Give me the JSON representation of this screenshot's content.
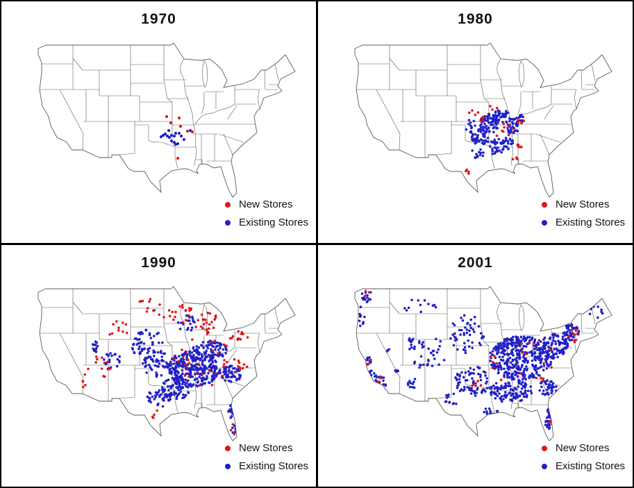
{
  "figure": {
    "description": "Four-panel small-multiple figure of the continental United States showing store locations over time",
    "legend": {
      "new_label": "New Stores",
      "existing_label": "Existing Stores"
    },
    "colors": {
      "new_stores": "#e01616",
      "existing_stores": "#2020c8",
      "map_line": "#5a5a5a",
      "panel_background": "#ffffff",
      "frame": "#000000",
      "title_text": "#111111"
    },
    "panels": [
      {
        "year": "1970"
      },
      {
        "year": "1980"
      },
      {
        "year": "1990"
      },
      {
        "year": "2001"
      }
    ]
  },
  "chart_data": [
    {
      "type": "scatter",
      "title": "1970",
      "map": "US lower-48 state outline map",
      "coordinate_space": "map-local px: x=(126.5-lon)*6.4, y=(49.5-lat)*9.2",
      "region_note": "Small cluster centered on northwest Arkansas / southern Missouri / eastern Oklahoma",
      "marker_size": 2.1,
      "series": [
        {
          "name": "New Stores",
          "color_key": "new_stores",
          "approx_count": 7,
          "points": [
            [
              196,
              108
            ],
            [
              202,
              117
            ],
            [
              214,
              110
            ],
            [
              216,
              122
            ],
            [
              226,
              129
            ],
            [
              233,
              130
            ],
            [
              212,
              168
            ]
          ]
        },
        {
          "name": "Existing Stores",
          "color_key": "existing_stores",
          "approx_count": 17,
          "points": [
            [
              188,
              137
            ],
            [
              191,
              135
            ],
            [
              194,
              133
            ],
            [
              199,
              128
            ],
            [
              197,
              136
            ],
            [
              200,
              138
            ],
            [
              203,
              135
            ],
            [
              207,
              136
            ],
            [
              209,
              132
            ],
            [
              214,
              132
            ],
            [
              217,
              136
            ],
            [
              203,
              143
            ],
            [
              207,
              145
            ],
            [
              209,
              148
            ],
            [
              212,
              147
            ],
            [
              221,
              141
            ],
            [
              230,
              128
            ]
          ]
        }
      ]
    },
    {
      "type": "scatter",
      "title": "1980",
      "map": "US lower-48 state outline map",
      "coordinate_space": "map-local px: x=(126.5-lon)*6.4, y=(49.5-lat)*9.2",
      "region_note": "Dense cluster over Arkansas, Missouri, Oklahoma, Kansas edge, north Texas, Louisiana, Mississippi, Tennessee; new stores on fringe (Kansas, Alabama, Texas gulf coast)",
      "marker_size": 1.8,
      "series": [
        {
          "name": "Existing Stores",
          "color_key": "existing_stores",
          "approx_count": 269,
          "clusters": [
            {
              "cx": 205,
              "cy": 118,
              "rx": 15,
              "ry": 14,
              "n": 70
            },
            {
              "cx": 192,
              "cy": 138,
              "rx": 13,
              "ry": 12,
              "n": 40
            },
            {
              "cx": 222,
              "cy": 108,
              "rx": 13,
              "ry": 10,
              "n": 40
            },
            {
              "cx": 238,
              "cy": 122,
              "rx": 10,
              "ry": 12,
              "n": 35
            },
            {
              "cx": 215,
              "cy": 152,
              "rx": 11,
              "ry": 12,
              "n": 30
            },
            {
              "cx": 232,
              "cy": 146,
              "rx": 8,
              "ry": 9,
              "n": 18
            },
            {
              "cx": 188,
              "cy": 160,
              "rx": 9,
              "ry": 8,
              "n": 12
            },
            {
              "cx": 248,
              "cy": 112,
              "rx": 7,
              "ry": 7,
              "n": 12
            },
            {
              "cx": 178,
              "cy": 122,
              "rx": 8,
              "ry": 10,
              "n": 12
            }
          ]
        },
        {
          "name": "New Stores",
          "color_key": "new_stores",
          "approx_count": 40,
          "clusters": [
            {
              "cx": 182,
              "cy": 103,
              "rx": 8,
              "ry": 5,
              "n": 4
            },
            {
              "cx": 195,
              "cy": 112,
              "rx": 6,
              "ry": 5,
              "n": 4
            },
            {
              "cx": 248,
              "cy": 150,
              "rx": 4,
              "ry": 3,
              "n": 6
            },
            {
              "cx": 204,
              "cy": 190,
              "rx": 5,
              "ry": 3,
              "n": 4
            },
            {
              "cx": 172,
              "cy": 188,
              "rx": 5,
              "ry": 4,
              "n": 4
            },
            {
              "cx": 222,
              "cy": 125,
              "rx": 18,
              "ry": 12,
              "n": 8
            },
            {
              "cx": 250,
              "cy": 115,
              "rx": 5,
              "ry": 4,
              "n": 4
            },
            {
              "cx": 240,
              "cy": 168,
              "rx": 6,
              "ry": 3,
              "n": 3
            },
            {
              "cx": 210,
              "cy": 95,
              "rx": 8,
              "ry": 4,
              "n": 3
            }
          ]
        }
      ]
    },
    {
      "type": "scatter",
      "title": "1990",
      "map": "US lower-48 state outline map",
      "coordinate_space": "map-local px: x=(126.5-lon)*6.4, y=(49.5-lat)*9.2",
      "region_note": "Existing stores blanket the South and lower Midwest plus Florida; new stores form expansion frontier across Dakotas/Minnesota/Wisconsin/Michigan, Pennsylvania/New York, and mountain west (Wyoming, Utah, Colorado, New Mexico, Arizona, California edge)",
      "marker_size": 1.8,
      "series": [
        {
          "name": "Existing Stores",
          "color_key": "existing_stores",
          "approx_count": 743,
          "clusters": [
            {
              "cx": 235,
              "cy": 120,
              "rx": 38,
              "ry": 26,
              "n": 300
            },
            {
              "cx": 210,
              "cy": 148,
              "rx": 22,
              "ry": 16,
              "n": 80
            },
            {
              "cx": 258,
              "cy": 95,
              "rx": 26,
              "ry": 15,
              "n": 80
            },
            {
              "cx": 288,
              "cy": 128,
              "rx": 16,
              "ry": 12,
              "n": 55
            },
            {
              "cx": 180,
              "cy": 112,
              "rx": 20,
              "ry": 20,
              "n": 55
            },
            {
              "cx": 185,
              "cy": 162,
              "rx": 18,
              "ry": 14,
              "n": 40
            },
            {
              "cx": 292,
              "cy": 182,
              "rx": 7,
              "ry": 12,
              "n": 22
            },
            {
              "cx": 295,
              "cy": 208,
              "rx": 5,
              "ry": 8,
              "n": 10
            },
            {
              "cx": 172,
              "cy": 78,
              "rx": 22,
              "ry": 15,
              "n": 30
            },
            {
              "cx": 93,
              "cy": 88,
              "rx": 4,
              "ry": 10,
              "n": 14
            },
            {
              "cx": 115,
              "cy": 108,
              "rx": 16,
              "ry": 14,
              "n": 22
            },
            {
              "cx": 152,
              "cy": 95,
              "rx": 12,
              "ry": 12,
              "n": 15
            },
            {
              "cx": 225,
              "cy": 55,
              "rx": 15,
              "ry": 12,
              "n": 20
            }
          ]
        },
        {
          "name": "New Stores",
          "color_key": "new_stores",
          "approx_count": 143,
          "clusters": [
            {
              "cx": 168,
              "cy": 28,
              "rx": 20,
              "ry": 10,
              "n": 10
            },
            {
              "cx": 210,
              "cy": 40,
              "rx": 25,
              "ry": 15,
              "n": 20
            },
            {
              "cx": 255,
              "cy": 55,
              "rx": 18,
              "ry": 16,
              "n": 25
            },
            {
              "cx": 300,
              "cy": 72,
              "rx": 15,
              "ry": 8,
              "n": 12
            },
            {
              "cx": 125,
              "cy": 62,
              "rx": 18,
              "ry": 12,
              "n": 10
            },
            {
              "cx": 100,
              "cy": 115,
              "rx": 20,
              "ry": 18,
              "n": 12
            },
            {
              "cx": 78,
              "cy": 140,
              "rx": 6,
              "ry": 12,
              "n": 5
            },
            {
              "cx": 250,
              "cy": 110,
              "rx": 45,
              "ry": 35,
              "n": 30
            },
            {
              "cx": 300,
              "cy": 115,
              "rx": 12,
              "ry": 12,
              "n": 10
            },
            {
              "cx": 293,
              "cy": 205,
              "rx": 5,
              "ry": 12,
              "n": 5
            },
            {
              "cx": 180,
              "cy": 185,
              "rx": 10,
              "ry": 8,
              "n": 4
            }
          ]
        }
      ]
    },
    {
      "type": "scatter",
      "title": "2001",
      "map": "US lower-48 state outline map",
      "coordinate_space": "map-local px: x=(126.5-lon)*6.4, y=(49.5-lat)*9.2",
      "region_note": "Existing stores cover virtually the entire country, dense east of the Great Plains with west-coast corridors (Puget Sound, Oregon I-5, California); new stores concentrated along the Northeast corridor plus scatter",
      "marker_size": 1.8,
      "series": [
        {
          "name": "Existing Stores",
          "color_key": "existing_stores",
          "approx_count": 994,
          "clusters": [
            {
              "cx": 250,
              "cy": 105,
              "rx": 45,
              "ry": 32,
              "n": 380
            },
            {
              "cx": 235,
              "cy": 152,
              "rx": 32,
              "ry": 17,
              "n": 110
            },
            {
              "cx": 298,
              "cy": 88,
              "rx": 20,
              "ry": 18,
              "n": 90
            },
            {
              "cx": 322,
              "cy": 68,
              "rx": 12,
              "ry": 12,
              "n": 45
            },
            {
              "cx": 288,
              "cy": 148,
              "rx": 14,
              "ry": 11,
              "n": 40
            },
            {
              "cx": 292,
              "cy": 192,
              "rx": 8,
              "ry": 17,
              "n": 35
            },
            {
              "cx": 358,
              "cy": 40,
              "rx": 12,
              "ry": 10,
              "n": 8
            },
            {
              "cx": 180,
              "cy": 138,
              "rx": 26,
              "ry": 22,
              "n": 70
            },
            {
              "cx": 172,
              "cy": 70,
              "rx": 26,
              "ry": 28,
              "n": 50
            },
            {
              "cx": 150,
              "cy": 165,
              "rx": 14,
              "ry": 9,
              "n": 12
            },
            {
              "cx": 205,
              "cy": 180,
              "rx": 12,
              "ry": 6,
              "n": 12
            },
            {
              "cx": 118,
              "cy": 98,
              "rx": 26,
              "ry": 26,
              "n": 35
            },
            {
              "cx": 92,
              "cy": 85,
              "rx": 4,
              "ry": 12,
              "n": 10
            },
            {
              "cx": 95,
              "cy": 140,
              "rx": 9,
              "ry": 8,
              "n": 10
            },
            {
              "cx": 72,
              "cy": 122,
              "rx": 4,
              "ry": 4,
              "n": 4
            },
            {
              "cx": 60,
              "cy": 95,
              "rx": 4,
              "ry": 4,
              "n": 3
            },
            {
              "cx": 28,
              "cy": 15,
              "rx": 7,
              "ry": 10,
              "n": 14
            },
            {
              "cx": 20,
              "cy": 45,
              "rx": 5,
              "ry": 14,
              "n": 10
            },
            {
              "cx": 30,
              "cy": 110,
              "rx": 5,
              "ry": 7,
              "n": 14
            },
            {
              "cx": 38,
              "cy": 128,
              "rx": 6,
              "ry": 12,
              "n": 10
            },
            {
              "cx": 48,
              "cy": 142,
              "rx": 8,
              "ry": 11,
              "n": 20
            },
            {
              "cx": 100,
              "cy": 30,
              "rx": 28,
              "ry": 12,
              "n": 12
            }
          ]
        },
        {
          "name": "New Stores",
          "color_key": "new_stores",
          "approx_count": 49,
          "clusters": [
            {
              "cx": 328,
              "cy": 72,
              "rx": 9,
              "ry": 10,
              "n": 10
            },
            {
              "cx": 250,
              "cy": 110,
              "rx": 50,
              "ry": 38,
              "n": 20
            },
            {
              "cx": 30,
              "cy": 110,
              "rx": 3,
              "ry": 4,
              "n": 3
            },
            {
              "cx": 48,
              "cy": 140,
              "rx": 5,
              "ry": 8,
              "n": 4
            },
            {
              "cx": 28,
              "cy": 12,
              "rx": 4,
              "ry": 6,
              "n": 3
            },
            {
              "cx": 293,
              "cy": 198,
              "rx": 5,
              "ry": 10,
              "n": 4
            },
            {
              "cx": 180,
              "cy": 150,
              "rx": 20,
              "ry": 15,
              "n": 5
            }
          ]
        }
      ]
    }
  ]
}
